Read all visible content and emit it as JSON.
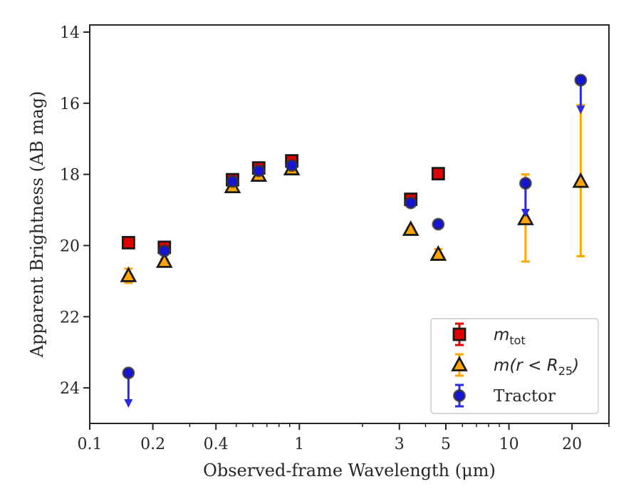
{
  "chart_data": {
    "type": "scatter",
    "xscale": "log",
    "xlabel": "Observed-frame Wavelength (μm)",
    "ylabel": "Apparent Brightness (AB mag)",
    "xlim": [
      0.1,
      30
    ],
    "ylim": [
      25,
      13.8
    ],
    "y_inverted": true,
    "x_ticks": [
      {
        "value": 0.1,
        "label": "0.1"
      },
      {
        "value": 0.2,
        "label": "0.2"
      },
      {
        "value": 0.4,
        "label": "0.4"
      },
      {
        "value": 1,
        "label": "1"
      },
      {
        "value": 3,
        "label": "3"
      },
      {
        "value": 5,
        "label": "5"
      },
      {
        "value": 10,
        "label": "10"
      },
      {
        "value": 20,
        "label": "20"
      }
    ],
    "y_ticks": [
      {
        "value": 14,
        "label": "14"
      },
      {
        "value": 16,
        "label": "16"
      },
      {
        "value": 18,
        "label": "18"
      },
      {
        "value": 20,
        "label": "20"
      },
      {
        "value": 22,
        "label": "22"
      },
      {
        "value": 24,
        "label": "24"
      }
    ],
    "legend_position": "lower-right",
    "series": [
      {
        "name": "m_tot",
        "legend_main": "m",
        "legend_sub": "tot",
        "marker": "square",
        "color": "#e00000",
        "edge": "#1a1a1a",
        "points": [
          {
            "x": 0.153,
            "y": 19.92,
            "err": 0.05
          },
          {
            "x": 0.227,
            "y": 20.05,
            "err": 0.06
          },
          {
            "x": 0.48,
            "y": 18.15,
            "err": 0.05
          },
          {
            "x": 0.64,
            "y": 17.82,
            "err": 0.04
          },
          {
            "x": 0.92,
            "y": 17.62,
            "err": 0.04
          },
          {
            "x": 3.4,
            "y": 18.7,
            "err": 0.06
          },
          {
            "x": 4.6,
            "y": 17.98,
            "err": 0.05
          }
        ]
      },
      {
        "name": "m(r < R25)",
        "legend_main": "m(r < R",
        "legend_sub": "25",
        "legend_tail": ")",
        "marker": "triangle",
        "color": "#ffa500",
        "edge": "#1a1a1a",
        "points": [
          {
            "x": 0.153,
            "y": 20.85,
            "err": 0.2
          },
          {
            "x": 0.227,
            "y": 20.45,
            "err": 0.07
          },
          {
            "x": 0.48,
            "y": 18.35,
            "err": 0.05
          },
          {
            "x": 0.64,
            "y": 18.03,
            "err": 0.04
          },
          {
            "x": 0.92,
            "y": 17.85,
            "err": 0.04
          },
          {
            "x": 3.4,
            "y": 19.55,
            "err": 0.06
          },
          {
            "x": 4.6,
            "y": 20.25,
            "err": 0.15
          },
          {
            "x": 12.0,
            "y": 19.25,
            "err_up": 1.25,
            "err_down": 1.2
          },
          {
            "x": 22.0,
            "y": 18.2,
            "err_up": 2.15,
            "err_down": 2.1
          }
        ]
      },
      {
        "name": "Tractor",
        "legend_main": "Tractor",
        "marker": "circle",
        "color": "#1414d2",
        "edge": "#333333",
        "points": [
          {
            "x": 0.153,
            "y": 23.58,
            "upper_limit": true,
            "arrow_to": 24.5
          },
          {
            "x": 0.227,
            "y": 20.15,
            "err": 0.05
          },
          {
            "x": 0.48,
            "y": 18.2,
            "err": 0.04
          },
          {
            "x": 0.64,
            "y": 17.9,
            "err": 0.04
          },
          {
            "x": 0.92,
            "y": 17.75,
            "err": 0.04
          },
          {
            "x": 3.4,
            "y": 18.8,
            "err": 0.05
          },
          {
            "x": 4.6,
            "y": 19.4,
            "err": 0.05
          },
          {
            "x": 12.0,
            "y": 18.25,
            "upper_limit": true,
            "arrow_to": 19.15
          },
          {
            "x": 22.0,
            "y": 15.35,
            "upper_limit": true,
            "arrow_to": 16.25
          }
        ]
      }
    ]
  }
}
